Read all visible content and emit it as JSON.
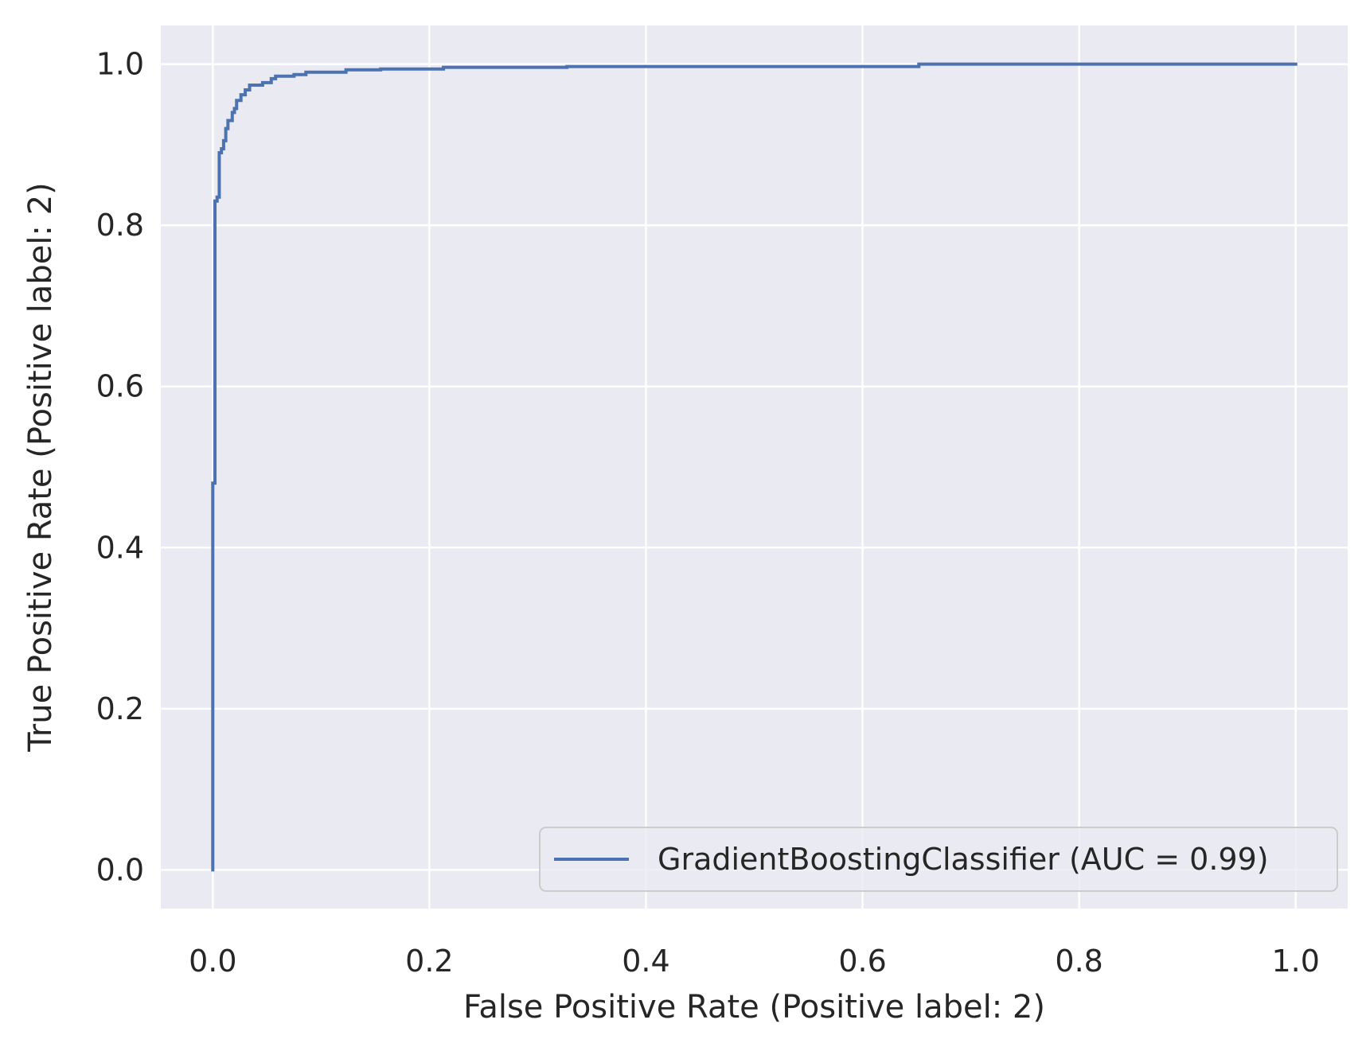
{
  "chart_data": {
    "type": "line",
    "xlabel": "False Positive Rate (Positive label: 2)",
    "ylabel": "True Positive Rate (Positive label: 2)",
    "xlim": [
      -0.048,
      1.048
    ],
    "ylim": [
      -0.048,
      1.048
    ],
    "x_ticks": [
      0.0,
      0.2,
      0.4,
      0.6,
      0.8,
      1.0
    ],
    "x_tick_labels": [
      "0.0",
      "0.2",
      "0.4",
      "0.6",
      "0.8",
      "1.0"
    ],
    "y_ticks": [
      0.0,
      0.2,
      0.4,
      0.6,
      0.8,
      1.0
    ],
    "y_tick_labels": [
      "0.0",
      "0.2",
      "0.4",
      "0.6",
      "0.8",
      "1.0"
    ],
    "grid": true,
    "legend_position": "lower-right",
    "colors": {
      "plot_background": "#EAEAF2",
      "grid": "#FFFFFF",
      "line": "#4C72B0",
      "text": "#262626"
    },
    "series": [
      {
        "name": "GradientBoostingClassifier (AUC = 0.99)",
        "points": [
          [
            0.0,
            0.0
          ],
          [
            0.0,
            0.48
          ],
          [
            0.002,
            0.48
          ],
          [
            0.002,
            0.83
          ],
          [
            0.004,
            0.83
          ],
          [
            0.004,
            0.835
          ],
          [
            0.006,
            0.835
          ],
          [
            0.006,
            0.89
          ],
          [
            0.008,
            0.89
          ],
          [
            0.008,
            0.895
          ],
          [
            0.01,
            0.895
          ],
          [
            0.01,
            0.905
          ],
          [
            0.012,
            0.905
          ],
          [
            0.012,
            0.92
          ],
          [
            0.014,
            0.92
          ],
          [
            0.014,
            0.93
          ],
          [
            0.018,
            0.93
          ],
          [
            0.018,
            0.94
          ],
          [
            0.02,
            0.94
          ],
          [
            0.02,
            0.945
          ],
          [
            0.022,
            0.945
          ],
          [
            0.022,
            0.955
          ],
          [
            0.026,
            0.955
          ],
          [
            0.026,
            0.962
          ],
          [
            0.03,
            0.962
          ],
          [
            0.03,
            0.968
          ],
          [
            0.034,
            0.968
          ],
          [
            0.034,
            0.974
          ],
          [
            0.046,
            0.974
          ],
          [
            0.046,
            0.977
          ],
          [
            0.054,
            0.977
          ],
          [
            0.054,
            0.982
          ],
          [
            0.058,
            0.982
          ],
          [
            0.058,
            0.985
          ],
          [
            0.075,
            0.985
          ],
          [
            0.075,
            0.987
          ],
          [
            0.086,
            0.987
          ],
          [
            0.086,
            0.99
          ],
          [
            0.123,
            0.99
          ],
          [
            0.123,
            0.993
          ],
          [
            0.155,
            0.993
          ],
          [
            0.155,
            0.994
          ],
          [
            0.213,
            0.994
          ],
          [
            0.213,
            0.996
          ],
          [
            0.327,
            0.996
          ],
          [
            0.327,
            0.997
          ],
          [
            0.652,
            0.997
          ],
          [
            0.652,
            1.0
          ],
          [
            1.0,
            1.0
          ]
        ]
      }
    ]
  }
}
